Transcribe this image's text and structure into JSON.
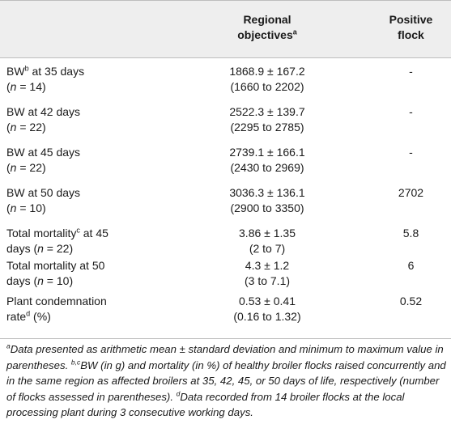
{
  "table": {
    "header": {
      "col1": "",
      "col2_line1": "Regional",
      "col2_line2": "objectives",
      "col2_sup": "a",
      "col3_line1": "Positive",
      "col3_line2": "flock"
    },
    "rows": [
      {
        "label_line1": "BW",
        "label_sup": "b",
        "label_line1_rest": " at 35 days",
        "label_line2_pre": "(",
        "label_line2_n": "n",
        "label_line2_post": " = 14)",
        "value_line1": "1868.9 ± 167.2",
        "value_line2": "(1660 to 2202)",
        "positive": "-"
      },
      {
        "label_line1": "BW at 42 days",
        "label_line2_pre": "(",
        "label_line2_n": "n",
        "label_line2_post": " = 22)",
        "value_line1": "2522.3 ± 139.7",
        "value_line2": "(2295 to 2785)",
        "positive": "-"
      },
      {
        "label_line1": "BW at 45 days",
        "label_line2_pre": "(",
        "label_line2_n": "n",
        "label_line2_post": " = 22)",
        "value_line1": "2739.1 ± 166.1",
        "value_line2": "(2430 to 2969)",
        "positive": "-"
      },
      {
        "label_line1": "BW at 50 days",
        "label_line2_pre": "(",
        "label_line2_n": "n",
        "label_line2_post": " = 10)",
        "value_line1": "3036.3 ± 136.1",
        "value_line2": "(2900 to 3350)",
        "positive": "2702"
      },
      {
        "label_line1": "Total mortality",
        "label_sup": "c",
        "label_line1_rest": " at 45",
        "label_line2_pre": "days (",
        "label_line2_n": "n",
        "label_line2_post": " = 22)",
        "value_line1": "3.86 ± 1.35",
        "value_line2": "(2 to 7)",
        "positive": "5.8"
      },
      {
        "label_line1": "Total mortality at 50",
        "label_line2_pre": "days (",
        "label_line2_n": "n",
        "label_line2_post": " = 10)",
        "value_line1": "4.3 ± 1.2",
        "value_line2": "(3 to 7.1)",
        "positive": "6"
      },
      {
        "label_line1": "Plant condemnation",
        "label_line2_pre": "rate",
        "label_line2_sup": "d",
        "label_line2_post2": " (%)",
        "value_line1": "0.53 ± 0.41",
        "value_line2": "(0.16 to 1.32)",
        "positive": "0.52"
      }
    ]
  },
  "footnote": {
    "a_sup": "a",
    "a_text": "Data presented as arithmetic mean ± standard deviation and minimum to maximum value in parentheses. ",
    "bc_sup": "b,c",
    "bc_text": "BW (in g) and mortality (in %) of healthy broiler flocks raised concurrently and in the same region as affected broilers at 35, 42, 45, or 50 days of life, respectively (number of flocks assessed in parentheses). ",
    "d_sup": "d",
    "d_text": "Data recorded from 14 broiler flocks at the local processing plant during 3 consecutive working days."
  }
}
